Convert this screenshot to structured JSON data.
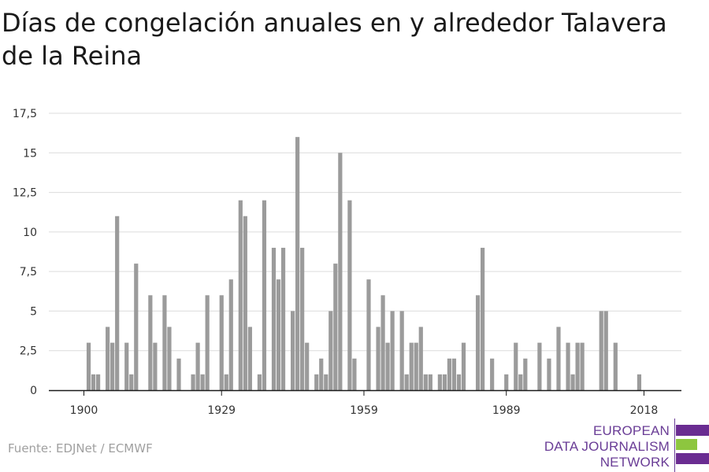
{
  "title": "Días de congelación anuales en y alrededor Talavera de la Reina",
  "source": "Fuente: EDJNet / ECMWF",
  "logo": {
    "lines": [
      "EUROPEAN",
      "DATA JOURNALISM",
      "NETWORK"
    ],
    "colors": {
      "text": "#6a3d96",
      "bar_purple": "#6a2c91",
      "bar_green": "#8dc63f"
    }
  },
  "chart_data": {
    "type": "bar",
    "title": "Días de congelación anuales en y alrededor Talavera de la Reina",
    "xlabel": "",
    "ylabel": "",
    "x_start": 1900,
    "x_end": 2019,
    "x_ticks": [
      1900,
      1929,
      1959,
      1989,
      2018
    ],
    "x_tick_labels": [
      "1900",
      "1929",
      "1959",
      "1989",
      "2018"
    ],
    "ylim": [
      0,
      17.5
    ],
    "y_ticks": [
      0,
      2.5,
      5,
      7.5,
      10,
      12.5,
      15,
      17.5
    ],
    "y_tick_labels": [
      "0",
      "2,5",
      "5",
      "7,5",
      "10",
      "12,5",
      "15",
      "17,5"
    ],
    "grid": true,
    "bar_color": "#9b9b9b",
    "years": [
      1900,
      1901,
      1902,
      1903,
      1904,
      1905,
      1906,
      1907,
      1908,
      1909,
      1910,
      1911,
      1912,
      1913,
      1914,
      1915,
      1916,
      1917,
      1918,
      1919,
      1920,
      1921,
      1922,
      1923,
      1924,
      1925,
      1926,
      1927,
      1928,
      1929,
      1930,
      1931,
      1932,
      1933,
      1934,
      1935,
      1936,
      1937,
      1938,
      1939,
      1940,
      1941,
      1942,
      1943,
      1944,
      1945,
      1946,
      1947,
      1948,
      1949,
      1950,
      1951,
      1952,
      1953,
      1954,
      1955,
      1956,
      1957,
      1958,
      1959,
      1960,
      1961,
      1962,
      1963,
      1964,
      1965,
      1966,
      1967,
      1968,
      1969,
      1970,
      1971,
      1972,
      1973,
      1974,
      1975,
      1976,
      1977,
      1978,
      1979,
      1980,
      1981,
      1982,
      1983,
      1984,
      1985,
      1986,
      1987,
      1988,
      1989,
      1990,
      1991,
      1992,
      1993,
      1994,
      1995,
      1996,
      1997,
      1998,
      1999,
      2000,
      2001,
      2002,
      2003,
      2004,
      2005,
      2006,
      2007,
      2008,
      2009,
      2010,
      2011,
      2012,
      2013,
      2014,
      2015,
      2016,
      2017,
      2018,
      2019
    ],
    "values": [
      0,
      3,
      1,
      1,
      0,
      4,
      3,
      11,
      0,
      3,
      1,
      8,
      0,
      0,
      6,
      3,
      0,
      6,
      4,
      0,
      2,
      0,
      0,
      1,
      3,
      1,
      6,
      0,
      0,
      6,
      1,
      7,
      0,
      12,
      11,
      4,
      0,
      1,
      12,
      0,
      9,
      7,
      9,
      0,
      5,
      16,
      9,
      3,
      0,
      1,
      2,
      1,
      5,
      8,
      15,
      0,
      12,
      2,
      0,
      0,
      7,
      0,
      4,
      6,
      3,
      5,
      0,
      5,
      1,
      3,
      3,
      4,
      1,
      1,
      0,
      1,
      1,
      2,
      2,
      1,
      3,
      0,
      0,
      6,
      9,
      0,
      2,
      0,
      0,
      1,
      0,
      3,
      1,
      2,
      0,
      0,
      3,
      0,
      2,
      0,
      4,
      0,
      3,
      1,
      3,
      3,
      0,
      0,
      0,
      5,
      5,
      0,
      3,
      0,
      0,
      0,
      0,
      1,
      0,
      0
    ]
  }
}
